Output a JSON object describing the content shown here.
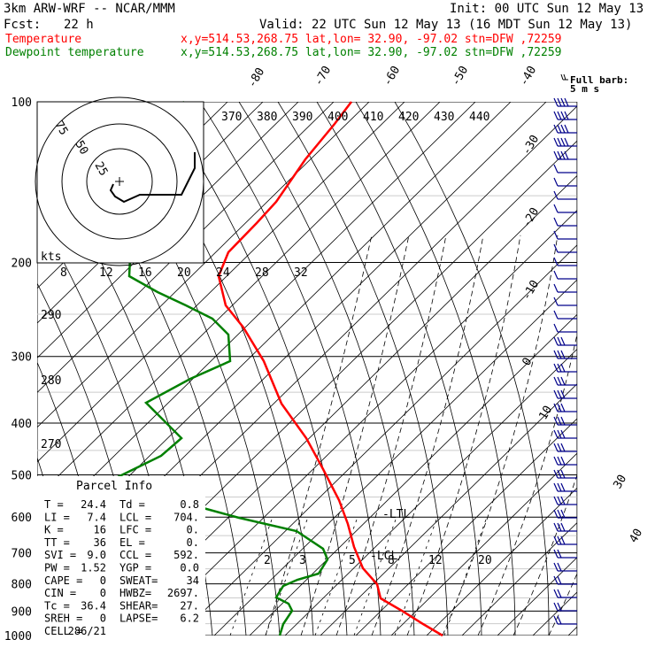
{
  "header": {
    "model": "3km ARW-WRF -- NCAR/MMM",
    "init": "Init: 00 UTC Sun 12 May 13",
    "fcst_label": "Fcst:",
    "fcst_value": "22 h",
    "valid": "Valid: 22 UTC Sun 12 May 13 (16 MDT Sun 12 May 13)",
    "temp_label": "Temperature",
    "temp_info": "x,y=514.53,268.75   lat,lon= 32.90, -97.02  stn=DFW ,72259",
    "dew_label": "Dewpoint temperature",
    "dew_info": "x,y=514.53,268.75   lat,lon= 32.90, -97.02  stn=DFW ,72259",
    "barb_legend_1": "Full barb:",
    "barb_legend_2": "5 m s"
  },
  "colors": {
    "temperature": "#ff0000",
    "dewpoint": "#008000",
    "grid": "#000000"
  },
  "chart_data": {
    "type": "line",
    "title": "",
    "xlabel": "",
    "ylabel": "",
    "pressure_levels": [
      "100",
      "200",
      "300",
      "400",
      "500",
      "600",
      "700",
      "800",
      "900",
      "1000"
    ],
    "temperature_ticks": [
      "-80",
      "-70",
      "-60",
      "-50",
      "-40",
      "-30",
      "-20",
      "-10",
      "0",
      "10",
      "30",
      "40"
    ],
    "theta_labels": [
      "370",
      "380",
      "390",
      "400",
      "410",
      "420",
      "430",
      "440"
    ],
    "theta_labels_left": [
      "290",
      "280",
      "270"
    ],
    "mixing_ratio_labels": [
      "2",
      "3",
      "5",
      "8",
      "12",
      "20"
    ],
    "hodograph": {
      "units_label": "kts",
      "speed_labels": [
        "8",
        "12",
        "16",
        "20",
        "24",
        "28",
        "32"
      ],
      "ring_labels": [
        "75",
        "50",
        "25"
      ]
    },
    "series": [
      {
        "name": "Temperature",
        "color": "#ff0000"
      },
      {
        "name": "Dewpoint temperature",
        "color": "#008000"
      }
    ],
    "wind_levels": 40,
    "marker_labels": {
      "ltl": "LTL",
      "lcl": "LCL"
    }
  },
  "parcel_info": {
    "title": "Parcel Info",
    "rows": [
      [
        "T  =",
        "24.4",
        "Td =",
        "0.8"
      ],
      [
        "LI =",
        "7.4",
        "LCL =",
        "704."
      ],
      [
        "K  =",
        "16",
        "LFC =",
        "0."
      ],
      [
        "TT =",
        "36",
        "EL  =",
        "0."
      ],
      [
        "SVI =",
        "9.0",
        "CCL =",
        "592."
      ],
      [
        "PW =",
        "1.52",
        "YGP =",
        "0.0"
      ],
      [
        "CAPE =",
        "0",
        "SWEAT=",
        "34"
      ],
      [
        "CIN =",
        "0",
        "HWBZ=",
        "2697."
      ],
      [
        "Tc =",
        "36.4",
        "SHEAR=",
        "27."
      ],
      [
        "SREH =",
        "0",
        "LAPSE=",
        "6.2"
      ],
      [
        "CELL =",
        "286/21",
        "",
        ""
      ]
    ]
  }
}
